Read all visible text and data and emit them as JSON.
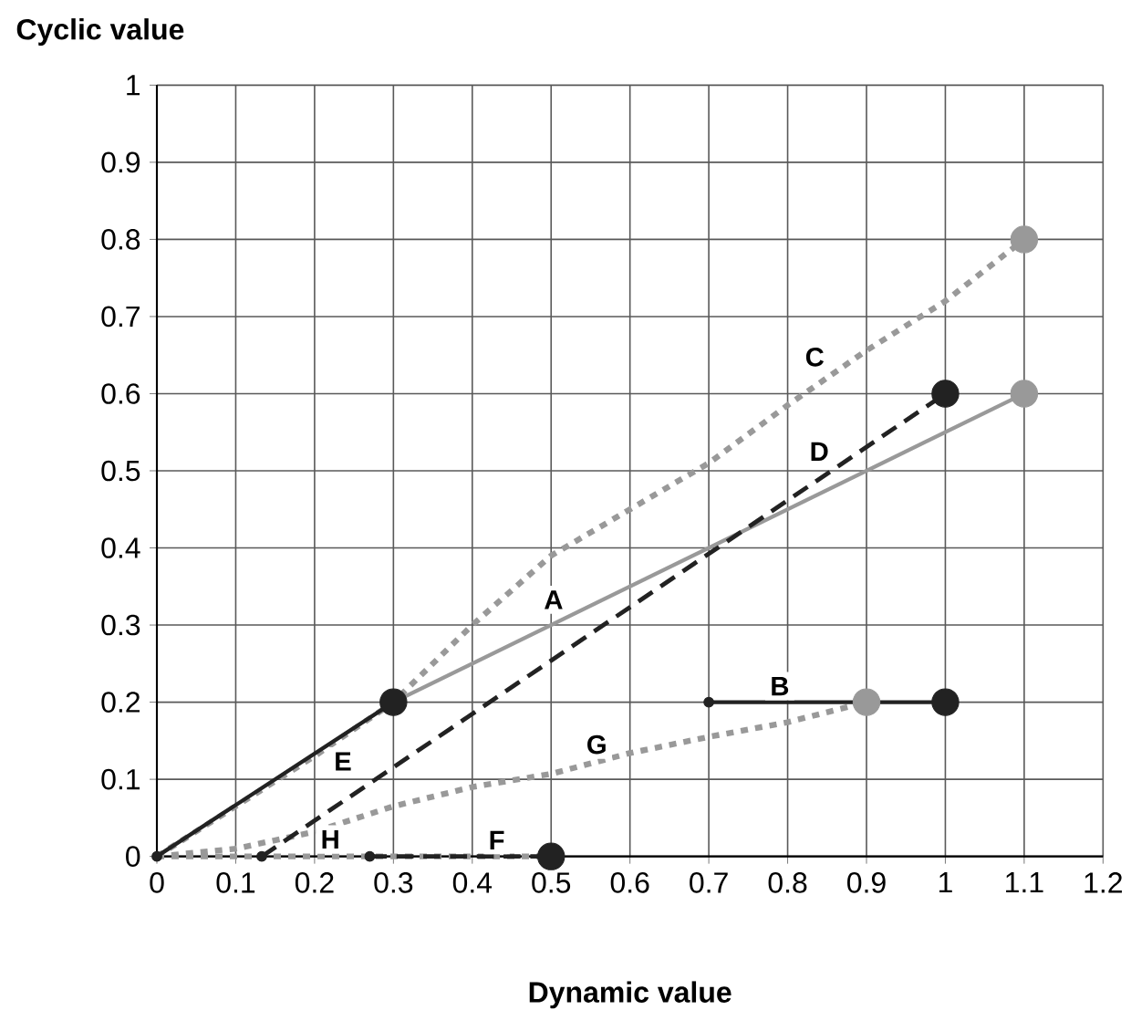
{
  "chart_data": {
    "type": "line",
    "ylabel": "Cyclic value",
    "xlabel": "Dynamic value",
    "xlim": [
      0,
      1.2
    ],
    "ylim": [
      0,
      1
    ],
    "xticks": [
      0,
      0.1,
      0.2,
      0.3,
      0.4,
      0.5,
      0.6,
      0.7,
      0.8,
      0.9,
      1,
      1.1,
      1.2
    ],
    "yticks": [
      0,
      0.1,
      0.2,
      0.3,
      0.4,
      0.5,
      0.6,
      0.7,
      0.8,
      0.9,
      1
    ],
    "grid": true,
    "series": [
      {
        "name": "C",
        "color": "#999999",
        "line_style": "dotted",
        "marker": "none",
        "x": [
          0,
          0.1,
          0.2,
          0.3,
          0.4,
          0.5,
          0.6,
          0.7,
          0.8,
          0.9,
          1.0,
          1.1
        ],
        "values": [
          0,
          0.065,
          0.13,
          0.2,
          0.3,
          0.39,
          0.45,
          0.51,
          0.585,
          0.656,
          0.72,
          0.8
        ]
      },
      {
        "name": "G",
        "color": "#999999",
        "line_style": "dotted",
        "marker": "none",
        "x": [
          0,
          0.1,
          0.2,
          0.3,
          0.4,
          0.5,
          0.6,
          0.7,
          0.8,
          0.9
        ],
        "values": [
          0,
          0.01,
          0.032,
          0.065,
          0.09,
          0.107,
          0.134,
          0.155,
          0.174,
          0.2
        ]
      },
      {
        "name": "H",
        "color": "#999999",
        "line_style": "dotted",
        "marker": "none",
        "x": [
          0,
          0.5
        ],
        "values": [
          0,
          0
        ]
      },
      {
        "name": "A",
        "color": "#999999",
        "line_style": "solid",
        "marker": "circle",
        "x": [
          0.3,
          1.1
        ],
        "values": [
          0.2,
          0.6
        ]
      },
      {
        "name": "E",
        "color": "#222222",
        "line_style": "solid",
        "marker": "circle",
        "x": [
          0,
          0.3
        ],
        "values": [
          0,
          0.2
        ]
      },
      {
        "name": "D",
        "color": "#222222",
        "line_style": "dashed",
        "marker": "circle",
        "x": [
          0.133,
          1.0
        ],
        "values": [
          0,
          0.6
        ]
      },
      {
        "name": "B",
        "color": "#222222",
        "line_style": "solid",
        "marker": "circle",
        "x": [
          0.7,
          1.0
        ],
        "values": [
          0.2,
          0.2
        ]
      },
      {
        "name": "F",
        "color": "#222222",
        "line_style": "dashed",
        "marker": "circle",
        "x": [
          0.27,
          0.5
        ],
        "values": [
          0,
          0
        ]
      },
      {
        "type": "scatter",
        "color": "#999999",
        "marker": "circle",
        "x": [
          1.1,
          0.9
        ],
        "values": [
          0.8,
          0.2
        ]
      }
    ]
  }
}
